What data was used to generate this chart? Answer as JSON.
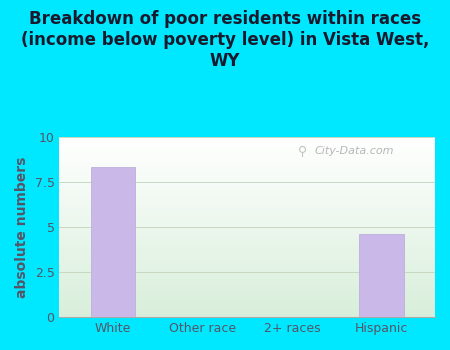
{
  "title": "Breakdown of poor residents within races\n(income below poverty level) in Vista West,\nWY",
  "categories": [
    "White",
    "Other race",
    "2+ races",
    "Hispanic"
  ],
  "values": [
    8.3,
    0,
    0,
    4.6
  ],
  "bar_color": "#c9b8e8",
  "bar_edgecolor": "#b8a8d8",
  "ylabel": "absolute numbers",
  "ylim": [
    0,
    10
  ],
  "yticks": [
    0,
    2.5,
    5,
    7.5,
    10
  ],
  "ytick_labels": [
    "0",
    "2.5",
    "5",
    "7.5",
    "10"
  ],
  "outer_background": "#00e8ff",
  "title_fontsize": 12,
  "title_color": "#1a1a2e",
  "tick_color": "#555566",
  "ylabel_color": "#555566",
  "grid_color": "#c8d8c0",
  "watermark_text": "City-Data.com",
  "ylabel_fontsize": 10,
  "tick_fontsize": 9,
  "bar_width": 0.5
}
